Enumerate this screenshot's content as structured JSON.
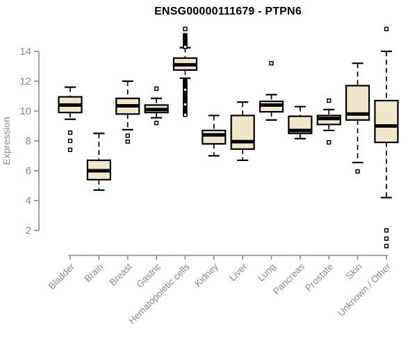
{
  "title": "ENSG00000111679 - PTPN6",
  "colors": {
    "background": "#ffffff",
    "box_fill": "#eee6cd",
    "box_stroke": "#000000",
    "median": "#000000",
    "outlier_stroke": "#000000",
    "outlier_fill": "#ffffff",
    "axis": "#898989",
    "tick_label": "#8a8a8a",
    "title": "#000000"
  },
  "chart_data": {
    "type": "boxplot",
    "title": "ENSG00000111679 - PTPN6",
    "xlabel": "",
    "ylabel": "Expression",
    "yticks": [
      2,
      4,
      6,
      8,
      10,
      12,
      14
    ],
    "ylim": [
      0.6,
      15.7
    ],
    "grid": "off",
    "categories": [
      "Bladder",
      "Brain",
      "Breast",
      "Gastric",
      "Hematopoietic cells",
      "Kidney",
      "Liver",
      "Lung",
      "Pancreas",
      "Prostate",
      "Skin",
      "Unknown / Other"
    ],
    "boxes": [
      {
        "category": "Bladder",
        "whisker_low": 9.45,
        "q1": 9.9,
        "median": 10.4,
        "q3": 10.95,
        "whisker_high": 11.6,
        "outliers": [
          8.55,
          8.0,
          7.4
        ]
      },
      {
        "category": "Brain",
        "whisker_low": 4.7,
        "q1": 5.4,
        "median": 6.0,
        "q3": 6.7,
        "whisker_high": 8.5,
        "outliers": []
      },
      {
        "category": "Breast",
        "whisker_low": 8.75,
        "q1": 9.8,
        "median": 10.35,
        "q3": 10.85,
        "whisker_high": 12.0,
        "outliers": [
          8.35,
          7.95
        ]
      },
      {
        "category": "Gastric",
        "whisker_low": 9.55,
        "q1": 9.9,
        "median": 10.1,
        "q3": 10.4,
        "whisker_high": 10.85,
        "outliers": [
          11.5,
          9.2
        ]
      },
      {
        "category": "Hematopoietic cells",
        "whisker_low": 12.2,
        "q1": 12.75,
        "median": 13.1,
        "q3": 13.55,
        "whisker_high": 14.25,
        "outliers": [
          15.5,
          15.08,
          15.02,
          14.96,
          14.9,
          14.84,
          14.78,
          14.72,
          14.66,
          14.6,
          14.54,
          14.48,
          14.42,
          14.36,
          14.3,
          12.02,
          11.96,
          11.9,
          11.84,
          11.78,
          11.72,
          11.66,
          11.6,
          11.54,
          11.48,
          11.42,
          11.22,
          11.16,
          11.1,
          11.04,
          10.98,
          10.92,
          10.86,
          10.8,
          10.74,
          10.68,
          10.62,
          10.56,
          10.5,
          10.44,
          10.22,
          10.16,
          10.1,
          10.04,
          9.98,
          9.92,
          9.86,
          9.8,
          9.75
        ]
      },
      {
        "category": "Kidney",
        "whisker_low": 7.0,
        "q1": 7.8,
        "median": 8.4,
        "q3": 8.7,
        "whisker_high": 9.7,
        "outliers": []
      },
      {
        "category": "Liver",
        "whisker_low": 6.7,
        "q1": 7.45,
        "median": 7.95,
        "q3": 9.7,
        "whisker_high": 10.6,
        "outliers": []
      },
      {
        "category": "Lung",
        "whisker_low": 9.4,
        "q1": 9.95,
        "median": 10.4,
        "q3": 10.65,
        "whisker_high": 11.1,
        "outliers": [
          13.2
        ]
      },
      {
        "category": "Pancreas",
        "whisker_low": 8.15,
        "q1": 8.5,
        "median": 8.7,
        "q3": 9.65,
        "whisker_high": 10.3,
        "outliers": []
      },
      {
        "category": "Prostate",
        "whisker_low": 8.7,
        "q1": 9.1,
        "median": 9.5,
        "q3": 9.7,
        "whisker_high": 10.1,
        "outliers": [
          10.7,
          7.9
        ]
      },
      {
        "category": "Skin",
        "whisker_low": 6.55,
        "q1": 9.4,
        "median": 9.8,
        "q3": 11.7,
        "whisker_high": 13.2,
        "outliers": [
          5.95
        ]
      },
      {
        "category": "Unknown / Other",
        "whisker_low": 4.2,
        "q1": 7.9,
        "median": 9.0,
        "q3": 10.7,
        "whisker_high": 14.0,
        "outliers": [
          15.5,
          2.0,
          1.45,
          0.95
        ]
      }
    ]
  }
}
